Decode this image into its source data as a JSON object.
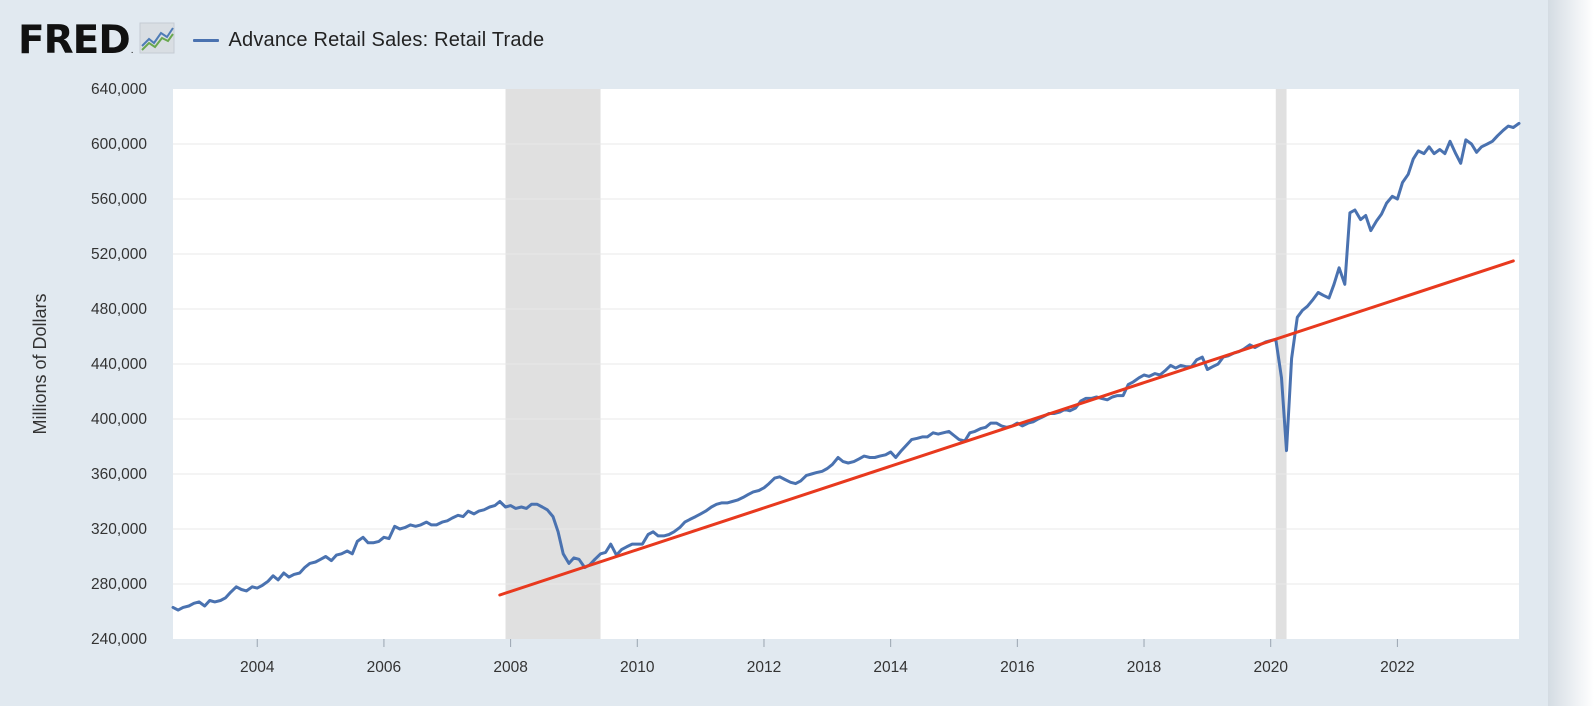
{
  "header": {
    "logo_text": "FRED",
    "logo_mark": ".",
    "logo_icon": "fred-graph-icon"
  },
  "colors": {
    "series": "#4a72b0",
    "trend": "#e8391e",
    "recession": "#e0e0e0",
    "grid": "#e8e8e8",
    "frame": "#e1e9f0"
  },
  "chart_data": {
    "type": "line",
    "title": "",
    "ylabel": "Millions of Dollars",
    "xlabel": "",
    "xlim": [
      2002.67,
      2023.92
    ],
    "ylim": [
      240000,
      640000
    ],
    "yticks": [
      240000,
      280000,
      320000,
      360000,
      400000,
      440000,
      480000,
      520000,
      560000,
      600000,
      640000
    ],
    "ytick_labels": [
      "240,000",
      "280,000",
      "320,000",
      "360,000",
      "400,000",
      "440,000",
      "480,000",
      "520,000",
      "560,000",
      "600,000",
      "640,000"
    ],
    "xticks": [
      2004,
      2006,
      2008,
      2010,
      2012,
      2014,
      2016,
      2018,
      2020,
      2022
    ],
    "xtick_labels": [
      "2004",
      "2006",
      "2008",
      "2010",
      "2012",
      "2014",
      "2016",
      "2018",
      "2020",
      "2022"
    ],
    "grid": true,
    "legend_position": "top-left",
    "recessions": [
      [
        2007.92,
        2009.42
      ],
      [
        2020.08,
        2020.25
      ]
    ],
    "series": [
      {
        "name": "Advance Retail Sales: Retail Trade",
        "points": [
          [
            2002.67,
            263000
          ],
          [
            2002.75,
            261000
          ],
          [
            2002.83,
            263000
          ],
          [
            2002.92,
            264000
          ],
          [
            2003.0,
            266000
          ],
          [
            2003.08,
            267000
          ],
          [
            2003.17,
            264000
          ],
          [
            2003.25,
            268000
          ],
          [
            2003.33,
            267000
          ],
          [
            2003.42,
            268000
          ],
          [
            2003.5,
            270000
          ],
          [
            2003.58,
            274000
          ],
          [
            2003.67,
            278000
          ],
          [
            2003.75,
            276000
          ],
          [
            2003.83,
            275000
          ],
          [
            2003.92,
            278000
          ],
          [
            2004.0,
            277000
          ],
          [
            2004.08,
            279000
          ],
          [
            2004.17,
            282000
          ],
          [
            2004.25,
            286000
          ],
          [
            2004.33,
            283000
          ],
          [
            2004.42,
            288000
          ],
          [
            2004.5,
            285000
          ],
          [
            2004.58,
            287000
          ],
          [
            2004.67,
            288000
          ],
          [
            2004.75,
            292000
          ],
          [
            2004.83,
            295000
          ],
          [
            2004.92,
            296000
          ],
          [
            2005.0,
            298000
          ],
          [
            2005.08,
            300000
          ],
          [
            2005.17,
            297000
          ],
          [
            2005.25,
            301000
          ],
          [
            2005.33,
            302000
          ],
          [
            2005.42,
            304000
          ],
          [
            2005.5,
            302000
          ],
          [
            2005.58,
            311000
          ],
          [
            2005.67,
            314000
          ],
          [
            2005.75,
            310000
          ],
          [
            2005.83,
            310000
          ],
          [
            2005.92,
            311000
          ],
          [
            2006.0,
            314000
          ],
          [
            2006.08,
            313000
          ],
          [
            2006.17,
            322000
          ],
          [
            2006.25,
            320000
          ],
          [
            2006.33,
            321000
          ],
          [
            2006.42,
            323000
          ],
          [
            2006.5,
            322000
          ],
          [
            2006.58,
            323000
          ],
          [
            2006.67,
            325000
          ],
          [
            2006.75,
            323000
          ],
          [
            2006.83,
            323000
          ],
          [
            2006.92,
            325000
          ],
          [
            2007.0,
            326000
          ],
          [
            2007.08,
            328000
          ],
          [
            2007.17,
            330000
          ],
          [
            2007.25,
            329000
          ],
          [
            2007.33,
            333000
          ],
          [
            2007.42,
            331000
          ],
          [
            2007.5,
            333000
          ],
          [
            2007.58,
            334000
          ],
          [
            2007.67,
            336000
          ],
          [
            2007.75,
            337000
          ],
          [
            2007.83,
            340000
          ],
          [
            2007.92,
            336000
          ],
          [
            2008.0,
            337000
          ],
          [
            2008.08,
            335000
          ],
          [
            2008.17,
            336000
          ],
          [
            2008.25,
            335000
          ],
          [
            2008.33,
            338000
          ],
          [
            2008.42,
            338000
          ],
          [
            2008.5,
            336000
          ],
          [
            2008.58,
            334000
          ],
          [
            2008.67,
            329000
          ],
          [
            2008.75,
            318000
          ],
          [
            2008.83,
            302000
          ],
          [
            2008.92,
            295000
          ],
          [
            2009.0,
            299000
          ],
          [
            2009.08,
            298000
          ],
          [
            2009.17,
            292000
          ],
          [
            2009.25,
            294000
          ],
          [
            2009.33,
            298000
          ],
          [
            2009.42,
            302000
          ],
          [
            2009.5,
            303000
          ],
          [
            2009.58,
            309000
          ],
          [
            2009.67,
            301000
          ],
          [
            2009.75,
            305000
          ],
          [
            2009.83,
            307000
          ],
          [
            2009.92,
            309000
          ],
          [
            2010.0,
            309000
          ],
          [
            2010.08,
            309000
          ],
          [
            2010.17,
            316000
          ],
          [
            2010.25,
            318000
          ],
          [
            2010.33,
            315000
          ],
          [
            2010.42,
            315000
          ],
          [
            2010.5,
            316000
          ],
          [
            2010.58,
            318000
          ],
          [
            2010.67,
            321000
          ],
          [
            2010.75,
            325000
          ],
          [
            2010.83,
            327000
          ],
          [
            2010.92,
            329000
          ],
          [
            2011.0,
            331000
          ],
          [
            2011.08,
            333000
          ],
          [
            2011.17,
            336000
          ],
          [
            2011.25,
            338000
          ],
          [
            2011.33,
            339000
          ],
          [
            2011.42,
            339000
          ],
          [
            2011.5,
            340000
          ],
          [
            2011.58,
            341000
          ],
          [
            2011.67,
            343000
          ],
          [
            2011.75,
            345000
          ],
          [
            2011.83,
            347000
          ],
          [
            2011.92,
            348000
          ],
          [
            2012.0,
            350000
          ],
          [
            2012.08,
            353000
          ],
          [
            2012.17,
            357000
          ],
          [
            2012.25,
            358000
          ],
          [
            2012.33,
            356000
          ],
          [
            2012.42,
            354000
          ],
          [
            2012.5,
            353000
          ],
          [
            2012.58,
            355000
          ],
          [
            2012.67,
            359000
          ],
          [
            2012.75,
            360000
          ],
          [
            2012.83,
            361000
          ],
          [
            2012.92,
            362000
          ],
          [
            2013.0,
            364000
          ],
          [
            2013.08,
            367000
          ],
          [
            2013.17,
            372000
          ],
          [
            2013.25,
            369000
          ],
          [
            2013.33,
            368000
          ],
          [
            2013.42,
            369000
          ],
          [
            2013.5,
            371000
          ],
          [
            2013.58,
            373000
          ],
          [
            2013.67,
            372000
          ],
          [
            2013.75,
            372000
          ],
          [
            2013.83,
            373000
          ],
          [
            2013.92,
            374000
          ],
          [
            2014.0,
            376000
          ],
          [
            2014.08,
            372000
          ],
          [
            2014.17,
            377000
          ],
          [
            2014.25,
            381000
          ],
          [
            2014.33,
            385000
          ],
          [
            2014.42,
            386000
          ],
          [
            2014.5,
            387000
          ],
          [
            2014.58,
            387000
          ],
          [
            2014.67,
            390000
          ],
          [
            2014.75,
            389000
          ],
          [
            2014.83,
            390000
          ],
          [
            2014.92,
            391000
          ],
          [
            2015.0,
            388000
          ],
          [
            2015.08,
            385000
          ],
          [
            2015.17,
            384000
          ],
          [
            2015.25,
            390000
          ],
          [
            2015.33,
            391000
          ],
          [
            2015.42,
            393000
          ],
          [
            2015.5,
            394000
          ],
          [
            2015.58,
            397000
          ],
          [
            2015.67,
            397000
          ],
          [
            2015.75,
            395000
          ],
          [
            2015.83,
            394000
          ],
          [
            2015.92,
            395000
          ],
          [
            2016.0,
            397000
          ],
          [
            2016.08,
            395000
          ],
          [
            2016.17,
            397000
          ],
          [
            2016.25,
            398000
          ],
          [
            2016.33,
            400000
          ],
          [
            2016.42,
            402000
          ],
          [
            2016.5,
            404000
          ],
          [
            2016.58,
            404000
          ],
          [
            2016.67,
            405000
          ],
          [
            2016.75,
            407000
          ],
          [
            2016.83,
            406000
          ],
          [
            2016.92,
            408000
          ],
          [
            2017.0,
            413000
          ],
          [
            2017.08,
            415000
          ],
          [
            2017.17,
            415000
          ],
          [
            2017.25,
            416000
          ],
          [
            2017.33,
            415000
          ],
          [
            2017.42,
            414000
          ],
          [
            2017.5,
            416000
          ],
          [
            2017.58,
            417000
          ],
          [
            2017.67,
            417000
          ],
          [
            2017.75,
            425000
          ],
          [
            2017.83,
            427000
          ],
          [
            2017.92,
            430000
          ],
          [
            2018.0,
            432000
          ],
          [
            2018.08,
            431000
          ],
          [
            2018.17,
            433000
          ],
          [
            2018.25,
            432000
          ],
          [
            2018.33,
            435000
          ],
          [
            2018.42,
            439000
          ],
          [
            2018.5,
            437000
          ],
          [
            2018.58,
            439000
          ],
          [
            2018.67,
            438000
          ],
          [
            2018.75,
            438000
          ],
          [
            2018.83,
            443000
          ],
          [
            2018.92,
            445000
          ],
          [
            2019.0,
            436000
          ],
          [
            2019.08,
            438000
          ],
          [
            2019.17,
            440000
          ],
          [
            2019.25,
            445000
          ],
          [
            2019.33,
            446000
          ],
          [
            2019.42,
            448000
          ],
          [
            2019.5,
            449000
          ],
          [
            2019.58,
            451000
          ],
          [
            2019.67,
            454000
          ],
          [
            2019.75,
            452000
          ],
          [
            2019.83,
            454000
          ],
          [
            2019.92,
            456000
          ],
          [
            2020.0,
            457000
          ],
          [
            2020.08,
            458000
          ],
          [
            2020.17,
            430000
          ],
          [
            2020.25,
            377000
          ],
          [
            2020.33,
            444000
          ],
          [
            2020.42,
            474000
          ],
          [
            2020.5,
            479000
          ],
          [
            2020.58,
            482000
          ],
          [
            2020.67,
            487000
          ],
          [
            2020.75,
            492000
          ],
          [
            2020.83,
            490000
          ],
          [
            2020.92,
            488000
          ],
          [
            2021.0,
            498000
          ],
          [
            2021.08,
            510000
          ],
          [
            2021.17,
            498000
          ],
          [
            2021.25,
            550000
          ],
          [
            2021.33,
            552000
          ],
          [
            2021.42,
            545000
          ],
          [
            2021.5,
            548000
          ],
          [
            2021.58,
            537000
          ],
          [
            2021.67,
            544000
          ],
          [
            2021.75,
            549000
          ],
          [
            2021.83,
            557000
          ],
          [
            2021.92,
            562000
          ],
          [
            2022.0,
            560000
          ],
          [
            2022.08,
            572000
          ],
          [
            2022.17,
            578000
          ],
          [
            2022.25,
            589000
          ],
          [
            2022.33,
            595000
          ],
          [
            2022.42,
            593000
          ],
          [
            2022.5,
            598000
          ],
          [
            2022.58,
            593000
          ],
          [
            2022.67,
            596000
          ],
          [
            2022.75,
            593000
          ],
          [
            2022.83,
            602000
          ],
          [
            2022.92,
            593000
          ],
          [
            2023.0,
            586000
          ],
          [
            2023.08,
            603000
          ],
          [
            2023.17,
            600000
          ],
          [
            2023.25,
            594000
          ],
          [
            2023.33,
            598000
          ],
          [
            2023.42,
            600000
          ],
          [
            2023.5,
            602000
          ],
          [
            2023.58,
            606000
          ],
          [
            2023.67,
            610000
          ],
          [
            2023.75,
            613000
          ],
          [
            2023.83,
            612000
          ],
          [
            2023.92,
            615000
          ]
        ]
      },
      {
        "points": [
          [
            2007.83,
            272000
          ],
          [
            2023.83,
            515000
          ]
        ]
      }
    ]
  }
}
